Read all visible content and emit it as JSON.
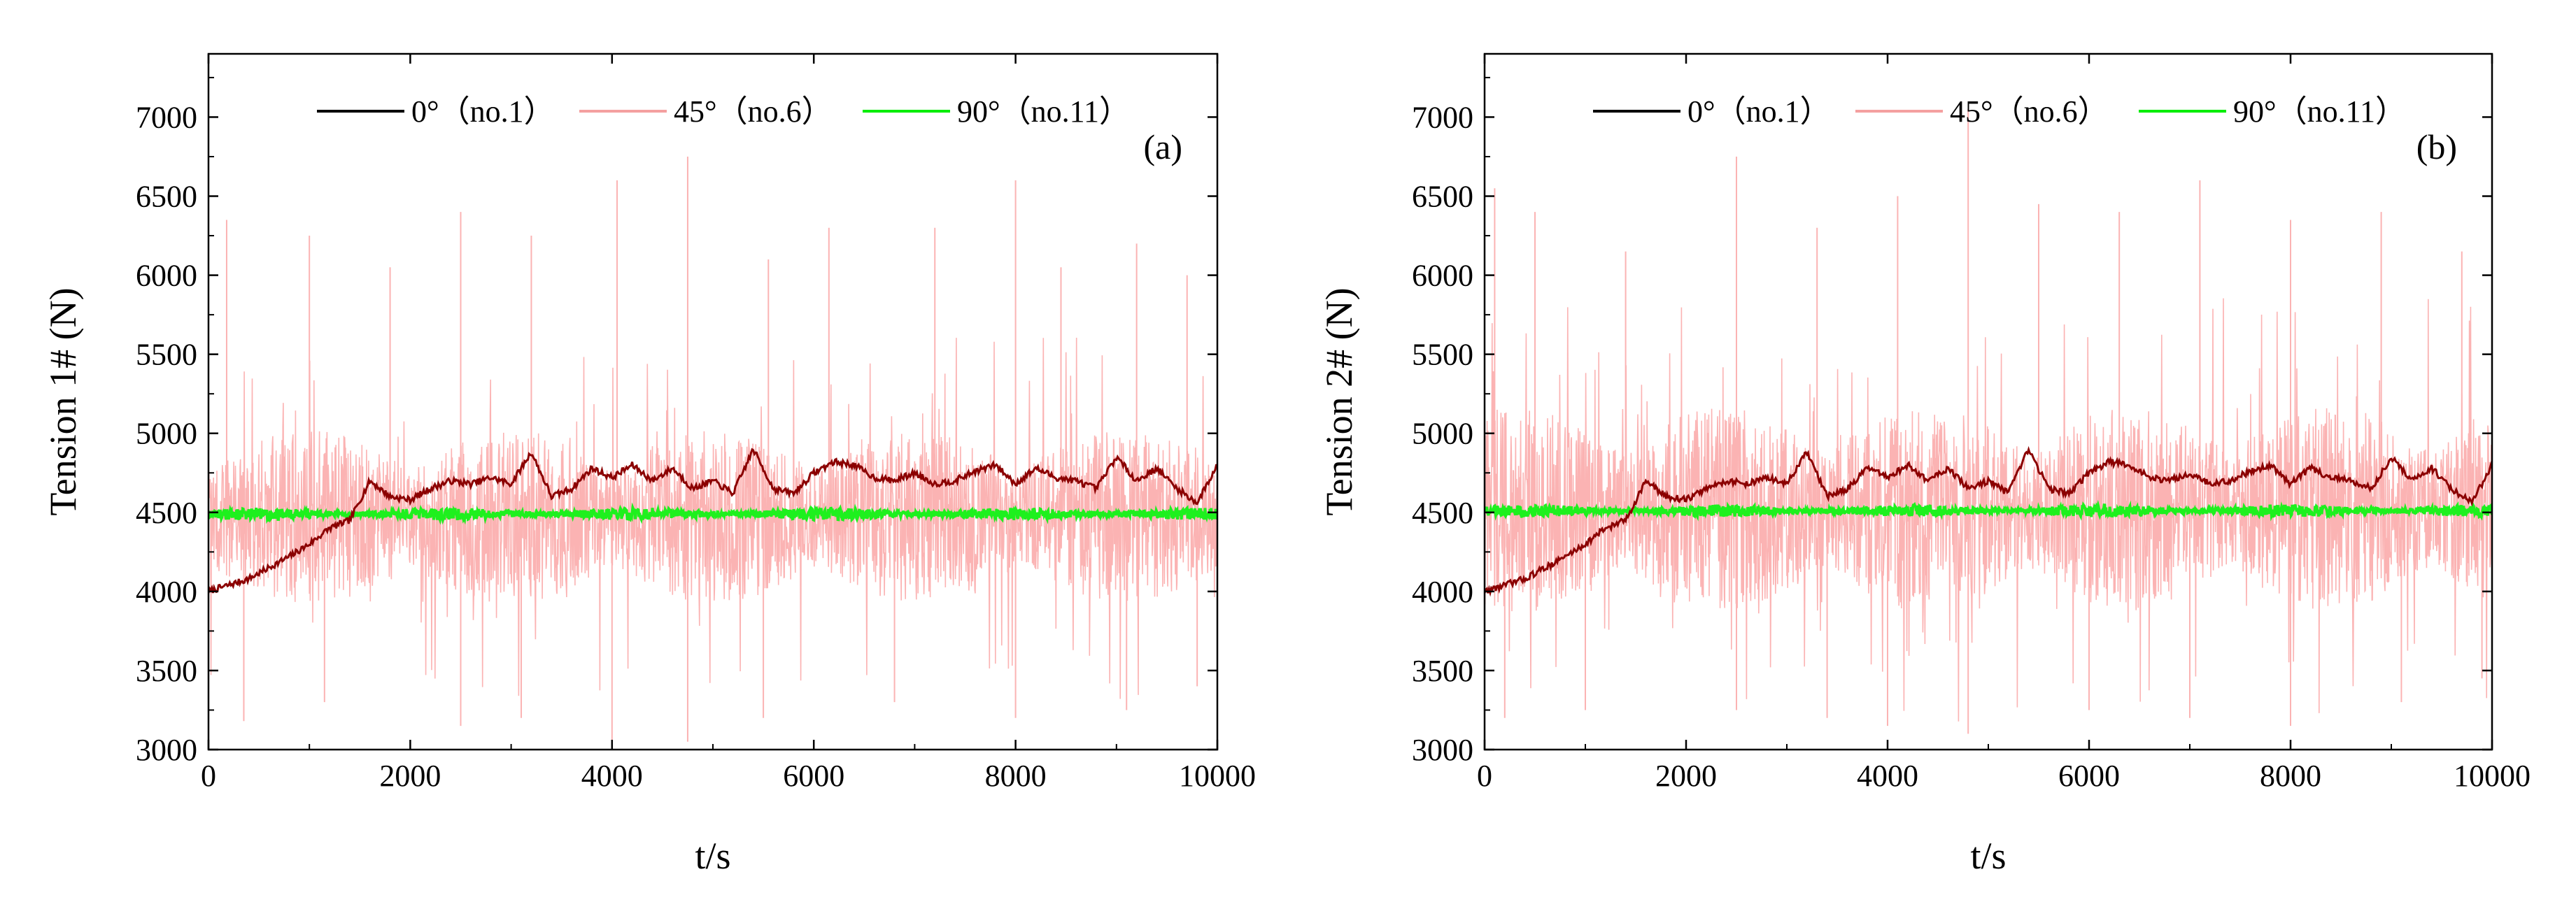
{
  "chart_data": [
    {
      "type": "line",
      "panel_label": "(a)",
      "xlabel": "t/s",
      "ylabel": "Tension 1# (N)",
      "xlim": [
        0,
        10000
      ],
      "ylim": [
        3000,
        7400
      ],
      "xticks": [
        0,
        2000,
        4000,
        6000,
        8000,
        10000
      ],
      "yticks": [
        3000,
        3500,
        4000,
        4500,
        5000,
        5500,
        6000,
        6500,
        7000
      ],
      "legend_position": "top-center",
      "series": [
        {
          "name": "0°（no.1）",
          "color": "#000000",
          "plot_color": "#8b0000",
          "kind": "drift",
          "x": [
            0,
            200,
            400,
            600,
            800,
            1000,
            1200,
            1400,
            1600,
            1800,
            2000,
            2200,
            2400,
            2600,
            2800,
            3000,
            3200,
            3400,
            3600,
            3800,
            4000,
            4200,
            4400,
            4600,
            4800,
            5000,
            5200,
            5400,
            5600,
            5800,
            6000,
            6200,
            6400,
            6600,
            6800,
            7000,
            7200,
            7400,
            7600,
            7800,
            8000,
            8200,
            8400,
            8600,
            8800,
            9000,
            9200,
            9400,
            9600,
            9800,
            10000
          ],
          "values": [
            4000,
            4040,
            4080,
            4150,
            4220,
            4300,
            4400,
            4450,
            4700,
            4600,
            4580,
            4650,
            4700,
            4680,
            4720,
            4680,
            4880,
            4600,
            4650,
            4780,
            4720,
            4800,
            4700,
            4780,
            4650,
            4700,
            4620,
            4900,
            4650,
            4620,
            4750,
            4820,
            4800,
            4720,
            4700,
            4750,
            4680,
            4700,
            4760,
            4800,
            4680,
            4780,
            4720,
            4700,
            4650,
            4850,
            4700,
            4780,
            4650,
            4560,
            4800
          ]
        },
        {
          "name": "45°（no.6）",
          "color": "#f4a0a0",
          "plot_color": "#fbb3b3",
          "kind": "noise",
          "mean": 4470,
          "amplitude": 550,
          "peaks": [
            [
              180,
              6350
            ],
            [
              1000,
              6250
            ],
            [
              1800,
              6050
            ],
            [
              2500,
              6400
            ],
            [
              3200,
              6250
            ],
            [
              4050,
              6600
            ],
            [
              4750,
              6750
            ],
            [
              5550,
              6100
            ],
            [
              6150,
              6300
            ],
            [
              7200,
              6300
            ],
            [
              8000,
              6600
            ],
            [
              8450,
              6050
            ],
            [
              9200,
              6200
            ],
            [
              9700,
              6000
            ]
          ],
          "troughs": [
            [
              350,
              3180
            ],
            [
              1150,
              3300
            ],
            [
              2500,
              3150
            ],
            [
              3100,
              3200
            ],
            [
              4000,
              3050
            ],
            [
              4750,
              3050
            ],
            [
              5500,
              3200
            ],
            [
              6800,
              3300
            ],
            [
              8000,
              3200
            ],
            [
              9100,
              3250
            ],
            [
              9800,
              3400
            ]
          ]
        },
        {
          "name": "90°（no.11）",
          "color": "#00ee00",
          "plot_color": "#1ef01e",
          "kind": "band",
          "mean": 4490,
          "amplitude": 40
        }
      ]
    },
    {
      "type": "line",
      "panel_label": "(b)",
      "xlabel": "t/s",
      "ylabel": "Tension 2# (N)",
      "xlim": [
        0,
        10000
      ],
      "ylim": [
        3000,
        7400
      ],
      "xticks": [
        0,
        2000,
        4000,
        6000,
        8000,
        10000
      ],
      "yticks": [
        3000,
        3500,
        4000,
        4500,
        5000,
        5500,
        6000,
        6500,
        7000
      ],
      "legend_position": "top-center",
      "series": [
        {
          "name": "0°（no.1）",
          "color": "#000000",
          "plot_color": "#8b0000",
          "kind": "drift",
          "x": [
            0,
            200,
            400,
            600,
            800,
            1000,
            1200,
            1400,
            1600,
            1800,
            2000,
            2200,
            2400,
            2600,
            2800,
            3000,
            3200,
            3400,
            3600,
            3800,
            4000,
            4200,
            4400,
            4600,
            4800,
            5000,
            5200,
            5400,
            5600,
            5800,
            6000,
            6200,
            6400,
            6600,
            6800,
            7000,
            7200,
            7400,
            7600,
            7800,
            8000,
            8200,
            8400,
            8600,
            8800,
            9000,
            9200,
            9400,
            9600,
            9800,
            10000
          ],
          "values": [
            4000,
            4040,
            4080,
            4150,
            4220,
            4300,
            4400,
            4450,
            4700,
            4600,
            4580,
            4650,
            4700,
            4680,
            4720,
            4680,
            4880,
            4600,
            4650,
            4780,
            4720,
            4800,
            4700,
            4780,
            4650,
            4700,
            4620,
            4900,
            4650,
            4620,
            4750,
            4820,
            4800,
            4720,
            4700,
            4750,
            4680,
            4700,
            4760,
            4800,
            4680,
            4780,
            4720,
            4700,
            4650,
            4850,
            4700,
            4780,
            4650,
            4560,
            4800
          ]
        },
        {
          "name": "45°（no.6）",
          "color": "#f4a0a0",
          "plot_color": "#fbb3b3",
          "kind": "noise",
          "mean": 4520,
          "amplitude": 650,
          "peaks": [
            [
              100,
              6550
            ],
            [
              500,
              6400
            ],
            [
              1400,
              6150
            ],
            [
              2500,
              6750
            ],
            [
              3300,
              6300
            ],
            [
              4100,
              6500
            ],
            [
              4800,
              7050
            ],
            [
              5500,
              6450
            ],
            [
              6300,
              6400
            ],
            [
              7100,
              6600
            ],
            [
              8000,
              6350
            ],
            [
              8900,
              6400
            ],
            [
              9700,
              6150
            ]
          ],
          "troughs": [
            [
              200,
              3200
            ],
            [
              1000,
              3250
            ],
            [
              2500,
              3250
            ],
            [
              3400,
              3200
            ],
            [
              4000,
              3150
            ],
            [
              4800,
              3100
            ],
            [
              6000,
              3250
            ],
            [
              7000,
              3200
            ],
            [
              8000,
              3150
            ],
            [
              9100,
              3300
            ],
            [
              9900,
              3450
            ]
          ]
        },
        {
          "name": "90°（no.11）",
          "color": "#00ee00",
          "plot_color": "#1ef01e",
          "kind": "band",
          "mean": 4510,
          "amplitude": 40
        }
      ]
    }
  ]
}
